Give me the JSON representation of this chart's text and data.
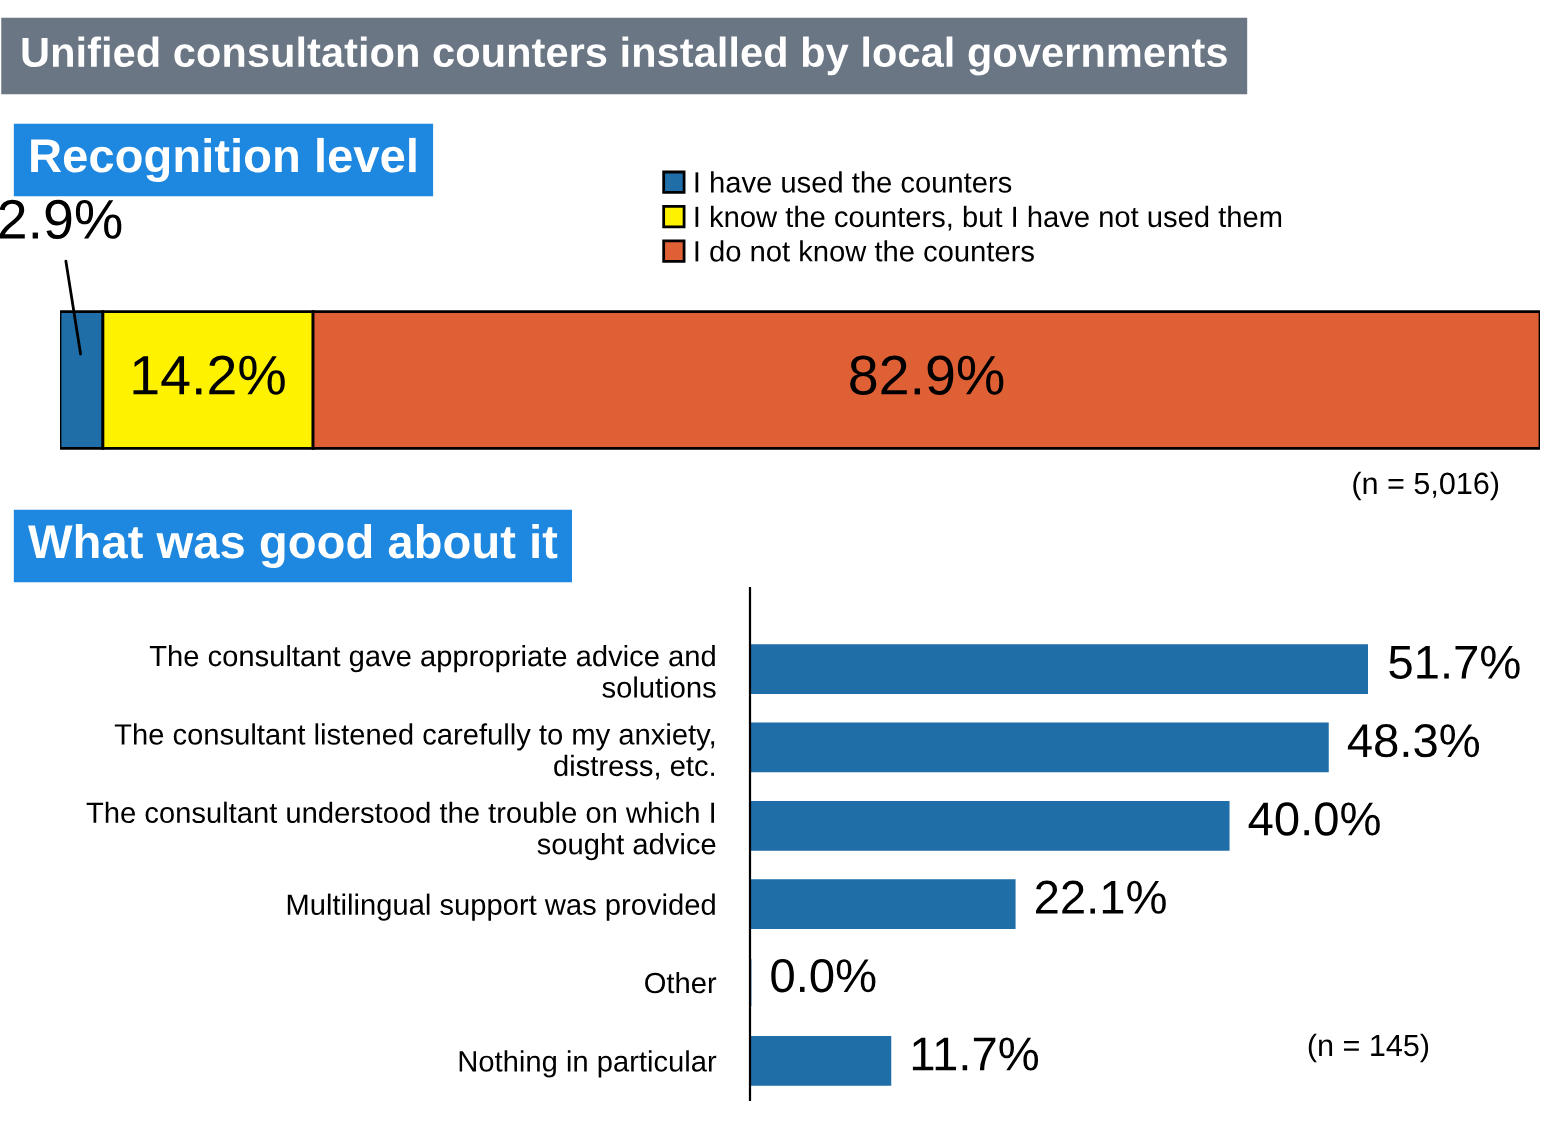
{
  "chart_data": [
    {
      "type": "bar",
      "orientation": "horizontal",
      "stacked": true,
      "title": "Unified consultation counters installed by local governments",
      "subtitle": "Recognition level",
      "categories": [
        null
      ],
      "tick_labels": false,
      "legend": "top right",
      "series": [
        {
          "name": "I have used the counters",
          "color": "#1f6ea8",
          "values": [
            2.9
          ],
          "value_labels": [
            "2.9%"
          ]
        },
        {
          "name": "I know the counters, but I have not used them",
          "color": "#fff200",
          "values": [
            14.2
          ],
          "value_labels": [
            "14.2%"
          ]
        },
        {
          "name": "I do not know the counters",
          "color": "#e06035",
          "values": [
            82.9
          ],
          "value_labels": [
            "82.9%"
          ]
        }
      ],
      "annotations": [
        "(n = 5,016)"
      ]
    },
    {
      "type": "bar",
      "orientation": "horizontal",
      "subtitle": "What was good about it",
      "categories": [
        "The consultant gave appropriate advice and\nsolutions",
        "The consultant listened carefully to my anxiety,\ndistress, etc.",
        "The consultant understood the trouble on which I\nsought advice",
        "Multilingual support was provided",
        "Other",
        "Nothing in particular"
      ],
      "values": [
        51.7,
        48.3,
        40.0,
        22.1,
        0.0,
        11.7
      ],
      "value_labels": [
        "51.7%",
        "48.3%",
        "40.0%",
        "22.1%",
        "0.0%",
        "11.7%"
      ],
      "color": "#1f6ea8",
      "tick_labels": "y",
      "legend": false,
      "annotations": [
        "(n = 145)"
      ]
    }
  ]
}
